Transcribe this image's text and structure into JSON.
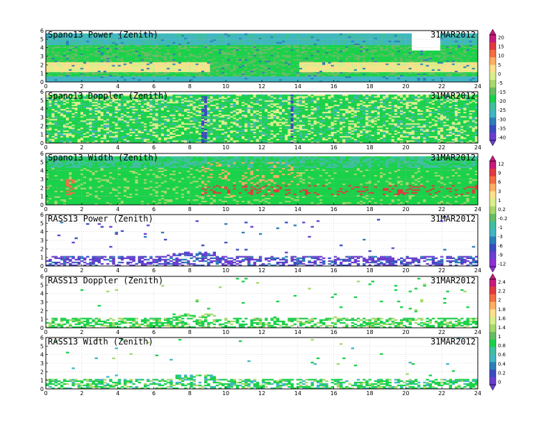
{
  "chart_data": [
    {
      "type": "heatmap",
      "title": "Spano13 Power (Zenith)",
      "date": "31MAR2012",
      "xlim": [
        0,
        24
      ],
      "ylim": [
        0,
        6
      ],
      "x_ticks": [
        "0",
        "2",
        "4",
        "6",
        "8",
        "10",
        "12",
        "14",
        "16",
        "18",
        "20",
        "22",
        "24"
      ],
      "y_ticks": [
        "0",
        "1",
        "2",
        "3",
        "4",
        "5",
        "6"
      ],
      "colorbar_ticks": [
        "20",
        "15",
        "10",
        "5",
        "0",
        "-5",
        "-15",
        "-20",
        "-25",
        "-30",
        "-35",
        "-40"
      ]
    },
    {
      "type": "heatmap",
      "title": "Spano13 Doppler (Zenith)",
      "date": "31MAR2012",
      "xlim": [
        0,
        24
      ],
      "ylim": [
        0,
        6
      ],
      "x_ticks": [
        "0",
        "2",
        "4",
        "6",
        "8",
        "10",
        "12",
        "14",
        "16",
        "18",
        "20",
        "22",
        "24"
      ],
      "y_ticks": [
        "0",
        "1",
        "2",
        "3",
        "4",
        "5",
        "6"
      ]
    },
    {
      "type": "heatmap",
      "title": "Spano13 Width (Zenith)",
      "date": "31MAR2012",
      "xlim": [
        0,
        24
      ],
      "ylim": [
        0,
        6
      ],
      "x_ticks": [
        "0",
        "2",
        "4",
        "6",
        "8",
        "10",
        "12",
        "14",
        "16",
        "18",
        "20",
        "22",
        "24"
      ],
      "y_ticks": [
        "0",
        "1",
        "2",
        "3",
        "4",
        "5",
        "6"
      ],
      "colorbar_ticks": [
        "12",
        "9",
        "6",
        "3",
        "1",
        "0.2",
        "-0.2",
        "-1",
        "-3",
        "-6",
        "-9",
        "-12"
      ]
    },
    {
      "type": "heatmap",
      "title": "RASS13 Power (Zenith)",
      "date": "31MAR2012",
      "xlim": [
        0,
        24
      ],
      "ylim": [
        0,
        6
      ],
      "x_ticks": [
        "0",
        "2",
        "4",
        "6",
        "8",
        "10",
        "12",
        "14",
        "16",
        "18",
        "20",
        "22",
        "24"
      ],
      "y_ticks": [
        "0",
        "1",
        "2",
        "3",
        "4",
        "5",
        "6"
      ]
    },
    {
      "type": "heatmap",
      "title": "RASS13 Doppler (Zenith)",
      "date": "31MAR2012",
      "xlim": [
        0,
        24
      ],
      "ylim": [
        0,
        6
      ],
      "x_ticks": [
        "0",
        "2",
        "4",
        "6",
        "8",
        "10",
        "12",
        "14",
        "16",
        "18",
        "20",
        "22",
        "24"
      ],
      "y_ticks": [
        "0",
        "1",
        "2",
        "3",
        "4",
        "5",
        "6"
      ],
      "colorbar_ticks": [
        "2.4",
        "2.2",
        "2",
        "1.8",
        "1.6",
        "1.4",
        "1",
        "0.8",
        "0.6",
        "0.4",
        "0.2",
        "0"
      ]
    },
    {
      "type": "heatmap",
      "title": "RASS13 Width (Zenith)",
      "date": "31MAR2012",
      "xlim": [
        0,
        24
      ],
      "ylim": [
        0,
        6
      ],
      "x_ticks": [
        "0",
        "2",
        "4",
        "6",
        "8",
        "10",
        "12",
        "14",
        "16",
        "18",
        "20",
        "22",
        "24"
      ],
      "y_ticks": [
        "0",
        "1",
        "2",
        "3",
        "4",
        "5",
        "6"
      ]
    }
  ],
  "palette": [
    "#c51b7d",
    "#e0393f",
    "#f46d43",
    "#fdae61",
    "#fee08b",
    "#d9ef8b",
    "#a6d96a",
    "#66bd63",
    "#1ad14a",
    "#3fbf9f",
    "#41b6c4",
    "#2c7fb8",
    "#3a4cc0",
    "#6a3fcf",
    "#8e2fd6"
  ]
}
